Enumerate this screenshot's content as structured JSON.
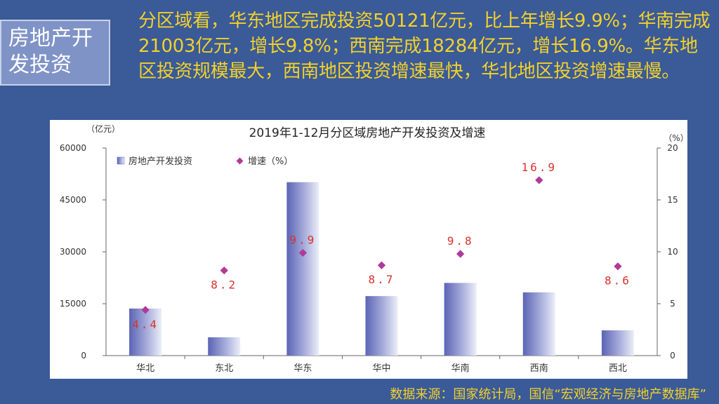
{
  "slide": {
    "title": "房地产开\n发投资",
    "summary": "分区域看，华东地区完成投资50121亿元，比上年增长9.9%；华南完成21003亿元，增长9.8%；西南完成18284亿元，增长16.9%。华东地区投资规模最大，西南地区投资增速最快，华北地区投资增速最慢。",
    "source": "数据来源：国家统计局，国信“宏观经济与房地产数据库”"
  },
  "colors": {
    "background": "#3a5a98",
    "title_box": "#7f93c7",
    "summary_text": "#f3d12a",
    "bar_dark": "#5b64b4",
    "bar_light": "#eceef8",
    "marker": "#b03a9a",
    "label": "#d8332c"
  },
  "chart_data": {
    "type": "bar",
    "title": "2019年1-12月分区域房地产开发投资及增速",
    "y_left_unit": "（亿元）",
    "y_right_unit": "（%）",
    "categories": [
      "华北",
      "东北",
      "华东",
      "华中",
      "华南",
      "西南",
      "西北"
    ],
    "series": [
      {
        "name": "房地产开发投资",
        "type": "bar",
        "axis": "left",
        "values": [
          13600,
          5300,
          50121,
          17200,
          21003,
          18284,
          7300
        ]
      },
      {
        "name": "增速（%）",
        "type": "scatter",
        "axis": "right",
        "values": [
          4.4,
          8.2,
          9.9,
          8.7,
          9.8,
          16.9,
          8.6
        ],
        "labels": [
          "4.4",
          "8.2",
          "9.9",
          "8.7",
          "9.8",
          "16.9",
          "8.6"
        ]
      }
    ],
    "y_left_ticks": [
      "0",
      "15000",
      "30000",
      "45000",
      "60000"
    ],
    "y_right_ticks": [
      "0",
      "5",
      "10",
      "15",
      "20"
    ],
    "ylim_left": [
      0,
      60000
    ],
    "ylim_right": [
      0,
      20
    ],
    "legend_position": "top-left",
    "grid": false
  }
}
